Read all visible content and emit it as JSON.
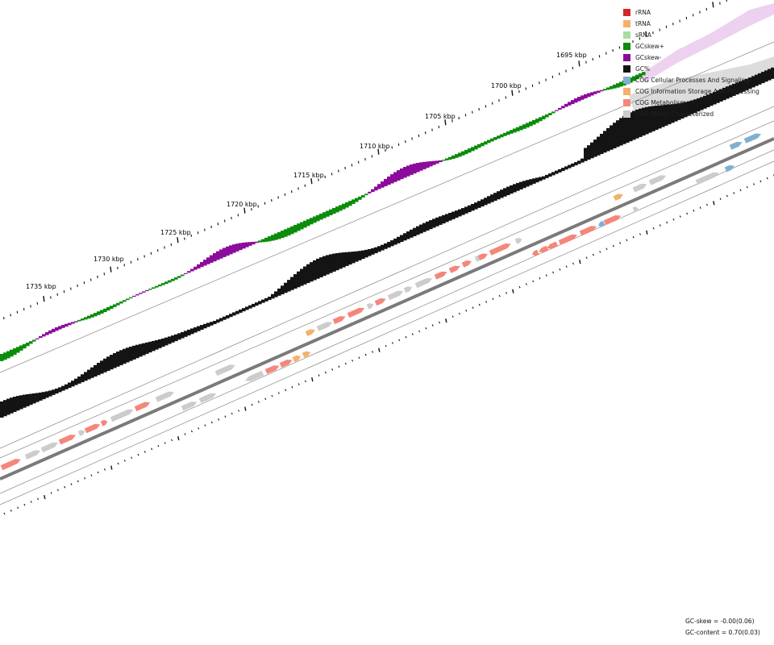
{
  "axis_labels": [
    "1695 kbp",
    "1700 kbp",
    "1705 kbp",
    "1710 kbp",
    "1715 kbp",
    "1720 kbp",
    "1725 kbp",
    "1730 kbp",
    "1735 kbp"
  ],
  "legend": [
    {
      "label": "rRNA",
      "color": "#d62728"
    },
    {
      "label": "tRNA",
      "color": "#f5b06a"
    },
    {
      "label": "sRNA",
      "color": "#a8dca0"
    },
    {
      "label": "GCskew+",
      "color": "#0b8c0b"
    },
    {
      "label": "GCskew-",
      "color": "#8b0c9a"
    },
    {
      "label": "GC%",
      "color": "#141414"
    },
    {
      "label": "COG Cellular Processes And Signaling",
      "color": "#7fb0d2"
    },
    {
      "label": "COG Information Storage And Processing",
      "color": "#f5b06a"
    },
    {
      "label": "COG Metabolism",
      "color": "#f4867a"
    },
    {
      "label": "COG Poorly Characterized",
      "color": "#cccccc"
    }
  ],
  "stats": {
    "gc_skew": "GC-skew = -0.00(0.06)",
    "gc_content": "GC-content = 0.70(0.03)"
  }
}
